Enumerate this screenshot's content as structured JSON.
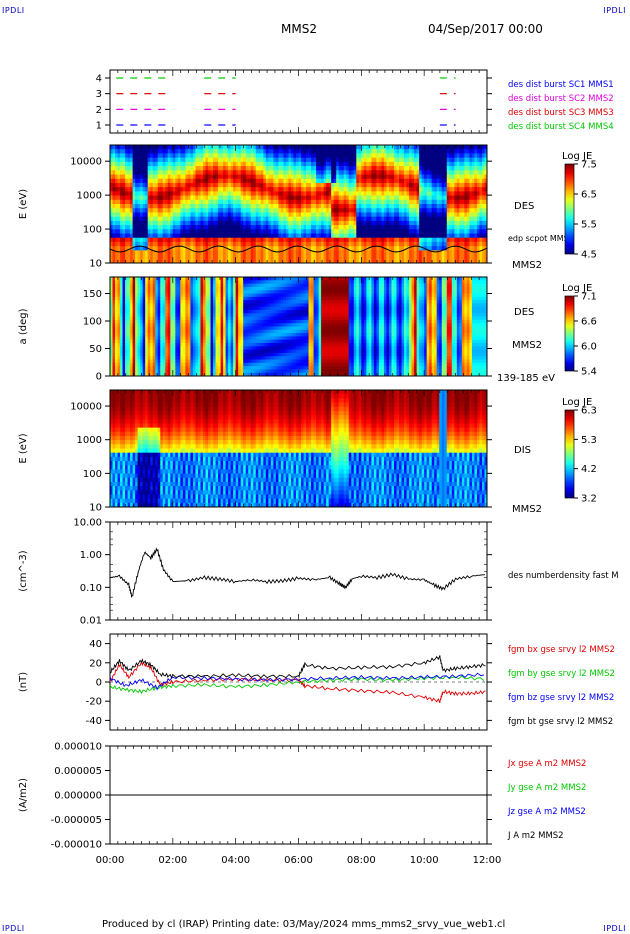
{
  "corner_labels": {
    "tl": "IPDLI",
    "tr": "IPDLI",
    "bl": "IPDLI",
    "br": "IPDLI"
  },
  "header": {
    "spacecraft": "MMS2",
    "datetime": "04/Sep/2017 00:00"
  },
  "footer": {
    "text": "Produced by cl (IRAP)   Printing date: 03/May/2024   mms_mms2_srvy_vue_web1.cl"
  },
  "time_axis": {
    "ticks": [
      "00:00",
      "02:00",
      "04:00",
      "06:00",
      "08:00",
      "10:00",
      "12:00"
    ],
    "range_hours": [
      0,
      12
    ]
  },
  "colors": {
    "red": "#e00000",
    "green": "#00c800",
    "blue": "#0000ff",
    "magenta": "#e000e0",
    "black": "#000000"
  },
  "chart_data": [
    {
      "type": "line",
      "title": "",
      "ylabel": "",
      "yticks": [
        "1",
        "2",
        "3",
        "4"
      ],
      "legend": [
        {
          "label": "des dist burst SC1 MMS1",
          "color": "#0000ff"
        },
        {
          "label": "des dist burst SC2 MMS2",
          "color": "#e000e0"
        },
        {
          "label": "des dist burst SC3 MMS3",
          "color": "#e00000"
        },
        {
          "label": "des dist burst SC4 MMS4",
          "color": "#00c800"
        }
      ],
      "series": [
        {
          "level": 1,
          "intervals": [
            [
              0.2,
              1.8
            ],
            [
              3.0,
              4.0
            ],
            [
              10.5,
              11.0
            ]
          ]
        },
        {
          "level": 2,
          "intervals": [
            [
              0.2,
              1.8
            ],
            [
              3.0,
              4.0
            ],
            [
              10.5,
              11.0
            ]
          ]
        },
        {
          "level": 3,
          "intervals": [
            [
              0.2,
              1.8
            ],
            [
              3.0,
              4.0
            ],
            [
              10.5,
              11.0
            ]
          ]
        },
        {
          "level": 4,
          "intervals": [
            [
              0.2,
              1.8
            ],
            [
              3.0,
              4.0
            ],
            [
              10.5,
              11.0
            ]
          ]
        }
      ]
    },
    {
      "type": "heatmap",
      "ylabel": "E (eV)",
      "yticks": [
        "10",
        "100",
        "1000",
        "10000"
      ],
      "ylim": [
        10,
        30000
      ],
      "side_labels": [
        "DES",
        "edp scpot MMS2",
        "MMS2"
      ],
      "colorbar": {
        "title": "Log JE",
        "ticks": [
          "7.5",
          "6.5",
          "5.5",
          "4.5"
        ]
      }
    },
    {
      "type": "heatmap",
      "ylabel": "a (deg)",
      "yticks": [
        "0",
        "50",
        "100",
        "150"
      ],
      "ylim": [
        0,
        180
      ],
      "side_labels": [
        "DES",
        "MMS2",
        "139-185 eV"
      ],
      "colorbar": {
        "title": "Log JE",
        "ticks": [
          "7.1",
          "6.6",
          "6.0",
          "5.4"
        ]
      }
    },
    {
      "type": "heatmap",
      "ylabel": "E (eV)",
      "yticks": [
        "10",
        "100",
        "1000",
        "10000"
      ],
      "ylim": [
        10,
        30000
      ],
      "side_labels": [
        "DIS",
        "MMS2"
      ],
      "colorbar": {
        "title": "Log JE",
        "ticks": [
          "6.3",
          "5.3",
          "4.2",
          "3.2"
        ]
      }
    },
    {
      "type": "line",
      "ylabel": "(cm^-3)",
      "yticks": [
        "0.01",
        "0.10",
        "1.00",
        "10.00"
      ],
      "ylim": [
        0.01,
        10
      ],
      "legend": [
        {
          "label": "des numberdensity fast M",
          "color": "#000000"
        }
      ],
      "series": [
        {
          "name": "des numberdensity fast M",
          "x": [
            0,
            0.3,
            0.6,
            0.7,
            0.9,
            1.1,
            1.3,
            1.5,
            1.7,
            2.0,
            2.5,
            3.0,
            3.5,
            4.0,
            4.5,
            5.0,
            5.5,
            6.0,
            6.5,
            7.0,
            7.3,
            7.5,
            7.7,
            8.0,
            8.5,
            9.0,
            9.5,
            10.0,
            10.3,
            10.6,
            11.0,
            11.5,
            12.0
          ],
          "y": [
            0.2,
            0.22,
            0.12,
            0.05,
            0.3,
            1.2,
            0.8,
            1.5,
            0.35,
            0.15,
            0.16,
            0.2,
            0.18,
            0.15,
            0.17,
            0.15,
            0.16,
            0.19,
            0.17,
            0.2,
            0.13,
            0.1,
            0.18,
            0.22,
            0.2,
            0.25,
            0.18,
            0.17,
            0.12,
            0.09,
            0.18,
            0.22,
            0.25
          ]
        }
      ]
    },
    {
      "type": "line",
      "ylabel": "(nT)",
      "yticks": [
        "40",
        "20",
        "0",
        "-20",
        "-40"
      ],
      "ylim": [
        -50,
        50
      ],
      "legend": [
        {
          "label": "fgm bx gse srvy l2 MMS2",
          "color": "#e00000"
        },
        {
          "label": "fgm by gse srvy l2 MMS2",
          "color": "#00c800"
        },
        {
          "label": "fgm bz gse srvy l2 MMS2",
          "color": "#0000ff"
        },
        {
          "label": "fgm bt gse srvy l2 MMS2",
          "color": "#000000"
        }
      ],
      "series": [
        {
          "name": "fgm bx gse srvy l2 MMS2",
          "color": "#e00000",
          "x": [
            0,
            0.3,
            0.6,
            1.0,
            1.3,
            1.6,
            2.0,
            3.0,
            4.0,
            5.0,
            6.0,
            6.2,
            7.0,
            8.0,
            9.0,
            10.0,
            10.5,
            10.6,
            11.0,
            11.5,
            12.0
          ],
          "y": [
            0,
            18,
            5,
            20,
            15,
            -3,
            0,
            2,
            3,
            2,
            2,
            -4,
            -7,
            -9,
            -11,
            -16,
            -20,
            -10,
            -12,
            -12,
            -10
          ]
        },
        {
          "name": "fgm by gse srvy l2 MMS2",
          "color": "#00c800",
          "x": [
            0,
            0.5,
            1.0,
            1.5,
            2.0,
            3.0,
            4.0,
            5.0,
            6.0,
            7.0,
            8.0,
            9.0,
            10.0,
            11.0,
            12.0
          ],
          "y": [
            -5,
            -8,
            -10,
            -6,
            -4,
            -3,
            -5,
            -3,
            0,
            2,
            3,
            2,
            4,
            5,
            3
          ]
        },
        {
          "name": "fgm bz gse srvy l2 MMS2",
          "color": "#0000ff",
          "x": [
            0,
            0.5,
            1.0,
            1.5,
            2.0,
            3.0,
            4.0,
            5.0,
            6.0,
            7.0,
            8.0,
            9.0,
            10.0,
            11.0,
            12.0
          ],
          "y": [
            4,
            -4,
            2,
            -6,
            5,
            4,
            3,
            2,
            3,
            4,
            5,
            4,
            5,
            6,
            8
          ]
        },
        {
          "name": "fgm bt gse srvy l2 MMS2",
          "color": "#000000",
          "x": [
            0,
            0.3,
            0.6,
            1.0,
            1.3,
            1.6,
            2.0,
            3.0,
            4.0,
            5.0,
            6.0,
            6.2,
            7.0,
            8.0,
            9.0,
            10.0,
            10.5,
            10.6,
            11.0,
            11.5,
            12.0
          ],
          "y": [
            10,
            22,
            12,
            22,
            18,
            8,
            6,
            6,
            7,
            6,
            6,
            18,
            14,
            15,
            16,
            20,
            26,
            12,
            14,
            16,
            18
          ]
        }
      ]
    },
    {
      "type": "line",
      "ylabel": "(A/m2)",
      "yticks": [
        "0.000010",
        "0.000005",
        "0.000000",
        "-0.000005",
        "-0.000010"
      ],
      "ylim": [
        -1e-05,
        1e-05
      ],
      "legend": [
        {
          "label": "Jx gse A m2 MMS2",
          "color": "#e00000"
        },
        {
          "label": "Jy gse A m2 MMS2",
          "color": "#00c800"
        },
        {
          "label": "Jz gse A m2 MMS2",
          "color": "#0000ff"
        },
        {
          "label": "J A m2 MMS2",
          "color": "#000000"
        }
      ],
      "series": [
        {
          "name": "J A m2 MMS2",
          "x": [
            0,
            12
          ],
          "y": [
            0,
            0
          ]
        }
      ]
    }
  ]
}
